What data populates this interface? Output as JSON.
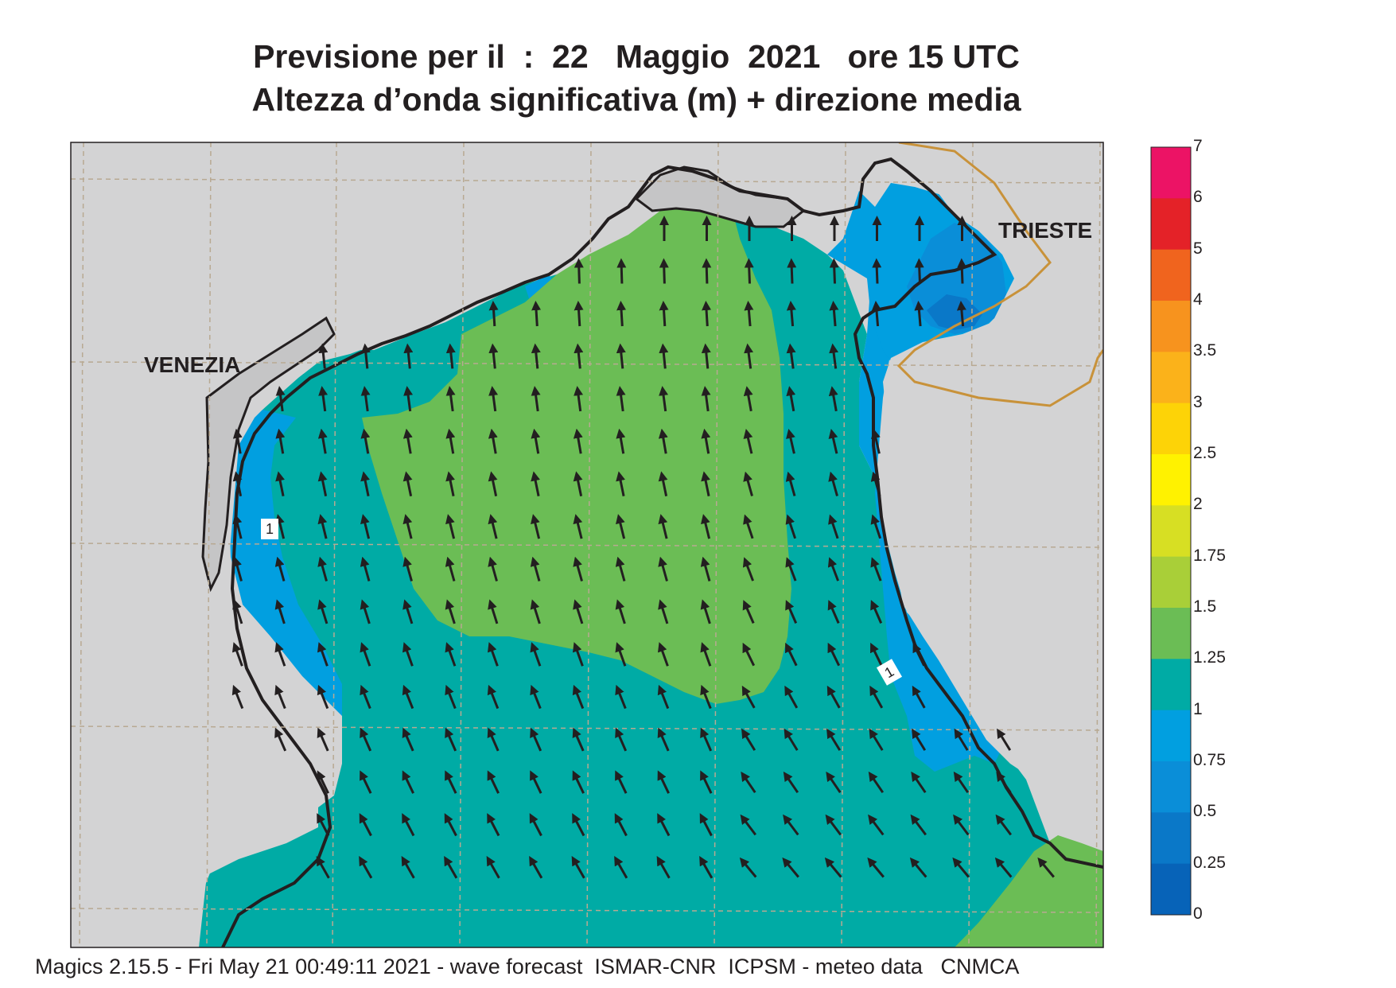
{
  "header": {
    "title_line1": "Previsione per il  :  22   Maggio  2021   ore 15 UTC",
    "title_line2": "Altezza d’onda significativa (m) + direzione media"
  },
  "map": {
    "labels": {
      "venezia": "VENEZIA",
      "trieste": "TRIESTE"
    },
    "contour_labels": [
      "1",
      "1"
    ],
    "colors": {
      "land": "#d3d3d4",
      "coast": "#231f20",
      "grid": "#b8a992",
      "border": "#c8923a",
      "sea_0_75_1": "#019fe0",
      "sea_0_5_0_75": "#0a8ed8",
      "sea_0_25_0_5": "#0a78c8",
      "sea_1_1_25": "#00aba5",
      "sea_1_25_1_5": "#6bbd55",
      "arrow": "#231f20"
    }
  },
  "legend": {
    "ticks": [
      "7",
      "6",
      "5",
      "4",
      "3.5",
      "3",
      "2.5",
      "2",
      "1.75",
      "1.5",
      "1.25",
      "1",
      "0.75",
      "0.5",
      "0.25",
      "0"
    ],
    "colors": [
      "#ec1365",
      "#e42228",
      "#f0641e",
      "#f7931e",
      "#fbb21a",
      "#fdd307",
      "#fff200",
      "#d7df23",
      "#a9cf38",
      "#6bbd55",
      "#00aba5",
      "#019fe0",
      "#0a8ed8",
      "#0a78c8",
      "#0763b8"
    ]
  },
  "footer": {
    "text": "Magics 2.15.5 - Fri May 21 00:49:11 2021 - wave forecast  ISMAR-CNR  ICPSM - meteo data   CNMCA"
  }
}
